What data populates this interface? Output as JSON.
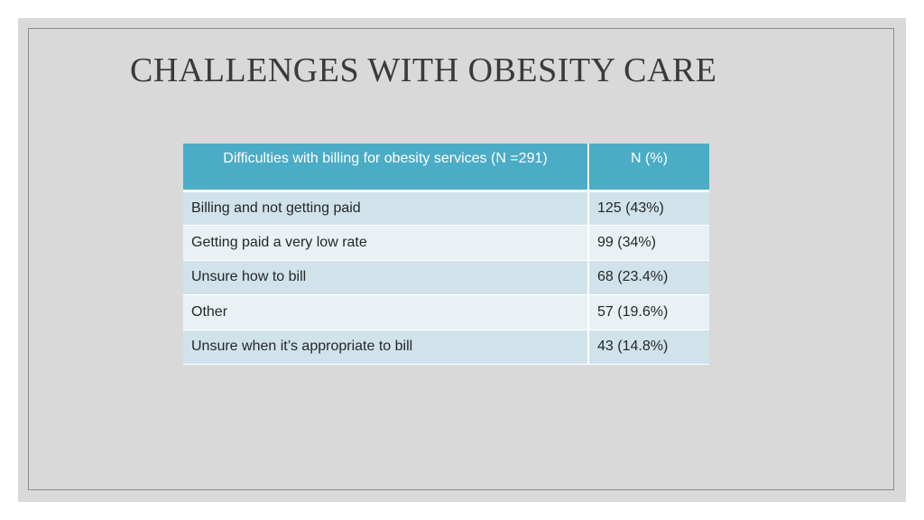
{
  "slide": {
    "title": "CHALLENGES WITH OBESITY CARE"
  },
  "table": {
    "headers": [
      "Difficulties with billing for obesity services (N =291)",
      "N (%)"
    ],
    "rows": [
      [
        "Billing and not getting paid",
        "125 (43%)"
      ],
      [
        "Getting paid a very low rate",
        "99 (34%)"
      ],
      [
        "Unsure how to bill",
        "68 (23.4%)"
      ],
      [
        "Other",
        "57 (19.6%)"
      ],
      [
        "Unsure when it’s appropriate to bill",
        "43 (14.8%)"
      ]
    ]
  },
  "colors": {
    "header_bg": "#4bacc6",
    "row_band_dark": "#d0e3ea",
    "row_band_light": "#e9f1f5",
    "slide_bg": "#d9d9d9"
  }
}
